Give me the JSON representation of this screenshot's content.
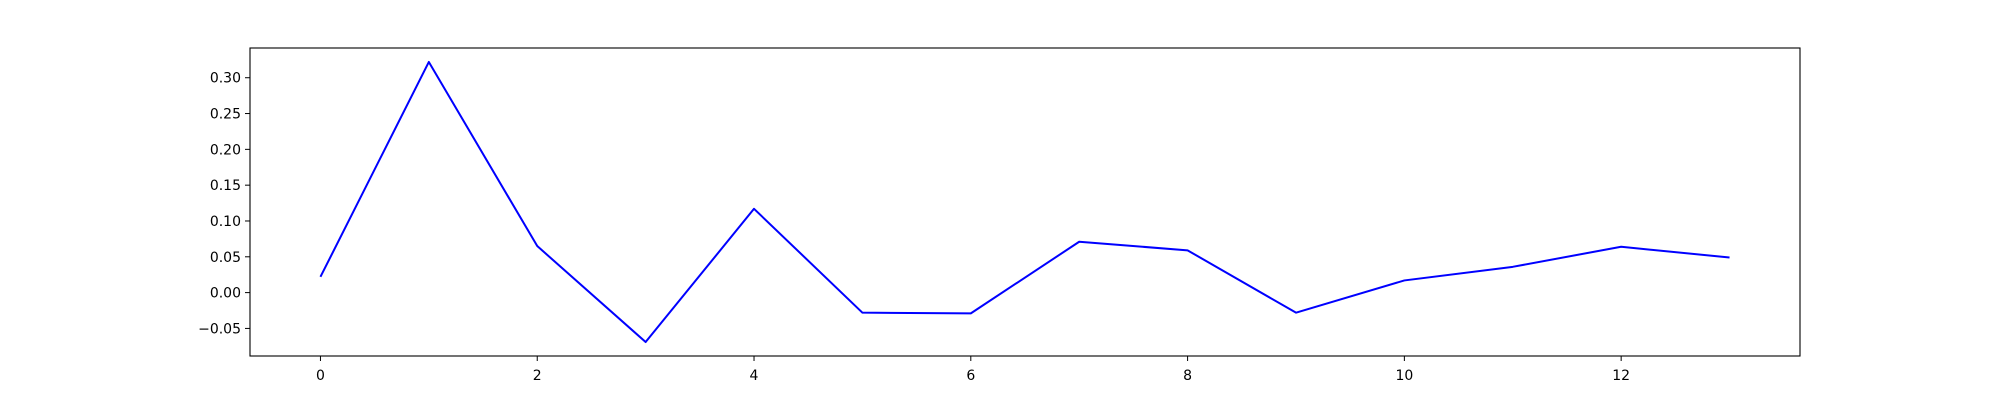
{
  "chart_data": {
    "type": "line",
    "title": "",
    "xlabel": "",
    "ylabel": "",
    "x": [
      0,
      1,
      2,
      3,
      4,
      5,
      6,
      7,
      8,
      9,
      10,
      11,
      12,
      13
    ],
    "series": [
      {
        "color": "#0000ff",
        "values": [
          0.022,
          0.322,
          0.065,
          -0.069,
          0.117,
          -0.028,
          -0.029,
          0.071,
          0.059,
          -0.028,
          0.017,
          0.036,
          0.064,
          0.049
        ]
      }
    ],
    "xlim": [
      -0.65,
      13.65
    ],
    "ylim": [
      -0.0885,
      0.3415
    ],
    "xticks": [
      0,
      2,
      4,
      6,
      8,
      10,
      12
    ],
    "xtick_labels": [
      "0",
      "2",
      "4",
      "6",
      "8",
      "10",
      "12"
    ],
    "yticks": [
      -0.05,
      0.0,
      0.05,
      0.1,
      0.15,
      0.2,
      0.25,
      0.3
    ],
    "ytick_labels": [
      "−0.05",
      "0.00",
      "0.05",
      "0.10",
      "0.15",
      "0.20",
      "0.25",
      "0.30"
    ],
    "grid": false,
    "legend": "none"
  }
}
